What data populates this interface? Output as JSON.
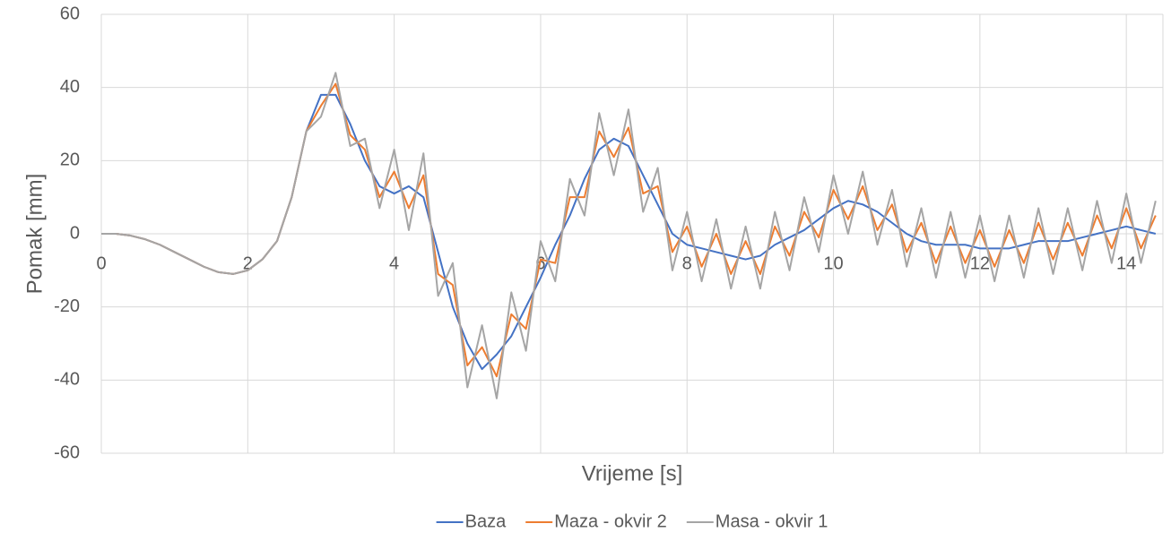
{
  "chart_data": {
    "type": "line",
    "x_label": "Vrijeme [s]",
    "y_label": "Pomak [mm]",
    "x": [
      0,
      0.2,
      0.4,
      0.6,
      0.8,
      1.0,
      1.2,
      1.4,
      1.6,
      1.8,
      2.0,
      2.2,
      2.4,
      2.6,
      2.8,
      3.0,
      3.2,
      3.4,
      3.6,
      3.8,
      4.0,
      4.2,
      4.4,
      4.6,
      4.8,
      5.0,
      5.2,
      5.4,
      5.6,
      5.8,
      6.0,
      6.2,
      6.4,
      6.6,
      6.8,
      7.0,
      7.2,
      7.4,
      7.6,
      7.8,
      8.0,
      8.2,
      8.4,
      8.6,
      8.8,
      9.0,
      9.2,
      9.4,
      9.6,
      9.8,
      10.0,
      10.2,
      10.4,
      10.6,
      10.8,
      11.0,
      11.2,
      11.4,
      11.6,
      11.8,
      12.0,
      12.2,
      12.4,
      12.6,
      12.8,
      13.0,
      13.2,
      13.4,
      13.6,
      13.8,
      14.0,
      14.2,
      14.4
    ],
    "series": [
      {
        "name": "Baza",
        "color": "#4472c4",
        "values": [
          0,
          0,
          -0.5,
          -1.5,
          -3,
          -5,
          -7,
          -9,
          -10.5,
          -11,
          -10,
          -7,
          -2,
          10,
          28,
          38,
          38,
          30,
          20,
          13,
          11,
          13,
          10,
          -5,
          -20,
          -30,
          -37,
          -33,
          -28,
          -20,
          -12,
          -3,
          5,
          15,
          23,
          26,
          24,
          16,
          8,
          0,
          -3,
          -4,
          -5,
          -6,
          -7,
          -6,
          -3,
          -1,
          1,
          4,
          7,
          9,
          8,
          6,
          3,
          0,
          -2,
          -3,
          -3,
          -3,
          -4,
          -4,
          -4,
          -3,
          -2,
          -2,
          -2,
          -1,
          0,
          1,
          2,
          1,
          0
        ]
      },
      {
        "name": "Maza - okvir 2",
        "color": "#ed7d31",
        "values": [
          0,
          0,
          -0.5,
          -1.5,
          -3,
          -5,
          -7,
          -9,
          -10.5,
          -11,
          -10,
          -7,
          -2,
          10,
          28,
          35,
          41,
          27,
          23,
          10,
          17,
          7,
          16,
          -11,
          -14,
          -36,
          -31,
          -39,
          -22,
          -26,
          -7,
          -8,
          10,
          10,
          28,
          21,
          29,
          11,
          13,
          -5,
          2,
          -9,
          0,
          -11,
          -2,
          -11,
          2,
          -6,
          6,
          -1,
          12,
          4,
          13,
          1,
          8,
          -5,
          3,
          -8,
          2,
          -8,
          1,
          -9,
          1,
          -8,
          3,
          -7,
          3,
          -6,
          5,
          -4,
          7,
          -4,
          5
        ]
      },
      {
        "name": "Masa - okvir 1",
        "color": "#a5a5a5",
        "values": [
          0,
          0,
          -0.5,
          -1.5,
          -3,
          -5,
          -7,
          -9,
          -10.5,
          -11,
          -10,
          -7,
          -2,
          10,
          28,
          32,
          44,
          24,
          26,
          7,
          23,
          1,
          22,
          -17,
          -8,
          -42,
          -25,
          -45,
          -16,
          -32,
          -2,
          -13,
          15,
          5,
          33,
          16,
          34,
          6,
          18,
          -10,
          6,
          -13,
          4,
          -15,
          2,
          -15,
          6,
          -10,
          10,
          -5,
          16,
          0,
          17,
          -3,
          12,
          -9,
          7,
          -12,
          6,
          -12,
          5,
          -13,
          5,
          -12,
          7,
          -11,
          7,
          -10,
          9,
          -8,
          11,
          -8,
          9
        ]
      }
    ],
    "xlim": [
      0,
      14.5
    ],
    "xticks": [
      0,
      2,
      4,
      6,
      8,
      10,
      12,
      14
    ],
    "ylim": [
      -60,
      60
    ],
    "yticks": [
      -60,
      -40,
      -20,
      0,
      20,
      40,
      60
    ],
    "grid": true,
    "legend": "bottom"
  }
}
